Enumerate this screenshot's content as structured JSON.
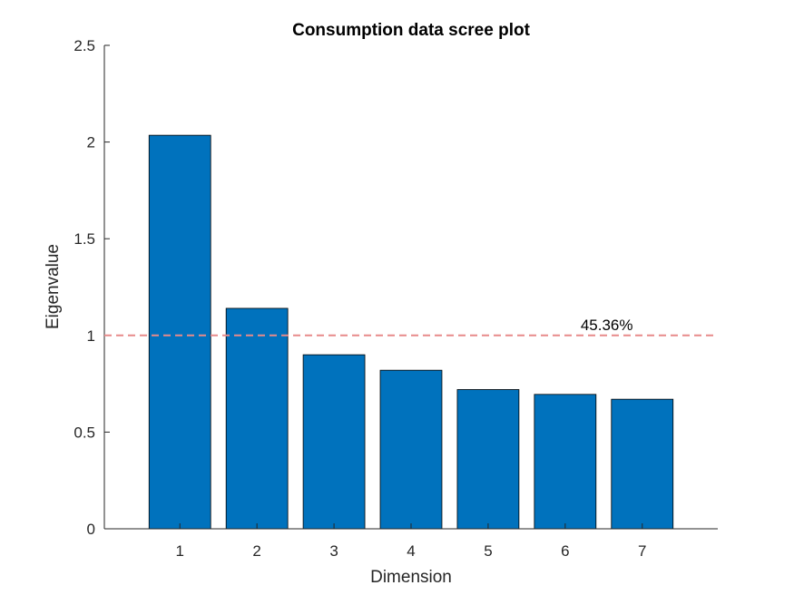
{
  "chart_data": {
    "type": "bar",
    "title": "Consumption data scree plot",
    "xlabel": "Dimension",
    "ylabel": "Eigenvalue",
    "categories": [
      "1",
      "2",
      "3",
      "4",
      "5",
      "6",
      "7"
    ],
    "values": [
      2.035,
      1.14,
      0.9,
      0.82,
      0.72,
      0.695,
      0.67
    ],
    "ylim": [
      0,
      2.5
    ],
    "yticks": [
      0,
      0.5,
      1,
      1.5,
      2,
      2.5
    ],
    "ytick_labels": [
      "0",
      "0.5",
      "1",
      "1.5",
      "2",
      "2.5"
    ],
    "grid": false,
    "bar_color": "#0072BD",
    "reference_line": {
      "y": 1,
      "style": "dashed",
      "color": "#E88A8A",
      "label": "45.36%",
      "label_x": 6.2
    }
  }
}
